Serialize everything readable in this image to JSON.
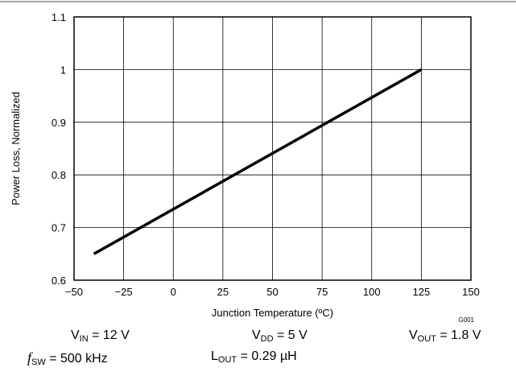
{
  "chart_data": {
    "type": "line",
    "title": "",
    "xlabel": "Junction Temperature (ºC)",
    "ylabel": "Power Loss, Normalized",
    "xlim": [
      -50,
      150
    ],
    "ylim": [
      0.6,
      1.1
    ],
    "x_ticks": [
      -50,
      -25,
      0,
      25,
      50,
      75,
      100,
      125,
      150
    ],
    "y_ticks": [
      0.6,
      0.7,
      0.8,
      0.9,
      1.0,
      1.1
    ],
    "x_tick_labels": [
      "−50",
      "−25",
      "0",
      "25",
      "50",
      "75",
      "100",
      "125",
      "150"
    ],
    "y_tick_labels": [
      "0.6",
      "0.7",
      "0.8",
      "0.9",
      "1",
      "1.1"
    ],
    "grid": true,
    "legend": "none",
    "series": [
      {
        "x": [
          -40,
          125
        ],
        "y": [
          0.65,
          1.0
        ]
      }
    ],
    "figure_id": "G001"
  },
  "conditions": {
    "vin_symbol": "V",
    "vin_sub": "IN",
    "vin_value": " = 12 V",
    "vdd_symbol": "V",
    "vdd_sub": "DD",
    "vdd_value": " = 5 V",
    "vout_symbol": "V",
    "vout_sub": "OUT",
    "vout_value": " = 1.8 V",
    "fsw_symbol": "f",
    "fsw_sub": "SW",
    "fsw_value": " = 500 kHz",
    "lout_symbol": "L",
    "lout_sub": "OUT",
    "lout_value": " = 0.29 µH"
  },
  "colors": {
    "line": "#000000",
    "grid": "#000000",
    "frame": "#000000",
    "top_rule": "#888888"
  }
}
